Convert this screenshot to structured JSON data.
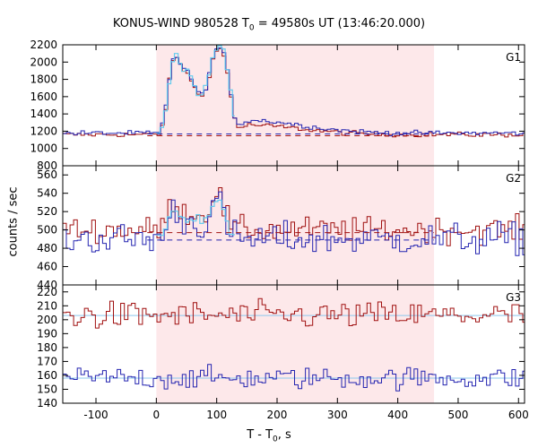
{
  "chart_data": {
    "type": "line",
    "title": "KONUS-WIND 980528 T0 = 49580s UT (13:46:20.000)",
    "title_parts": {
      "pre": "KONUS-WIND 980528 T",
      "sub": "0",
      "post": " = 49580s UT (13:46:20.000)"
    },
    "ylabel": "counts / sec",
    "xlabel": "T - T0, s",
    "xlabel_parts": {
      "pre": "T - T",
      "sub": "0",
      "post": ", s"
    },
    "xlim": [
      -155,
      610
    ],
    "x_ticks": [
      "-100",
      "0",
      "100",
      "200",
      "300",
      "400",
      "500",
      "600"
    ],
    "x_tick_values": [
      -100,
      0,
      100,
      200,
      300,
      400,
      500,
      600
    ],
    "highlight_interval": [
      0,
      460
    ],
    "highlight_color": "#fde8ea",
    "bin_width": 6,
    "colors": {
      "red": "#a01010",
      "blue": "#2424b0",
      "cyan": "#66ccee",
      "fit": "#8cc8ee"
    },
    "panels": [
      {
        "label": "G1",
        "ylim": [
          800,
          2200
        ],
        "y_ticks": [
          "800",
          "1000",
          "1200",
          "1400",
          "1600",
          "1800",
          "2000",
          "2200"
        ],
        "y_tick_values": [
          800,
          1000,
          1200,
          1400,
          1600,
          1800,
          2000,
          2200
        ],
        "background_levels": [
          {
            "color": "red",
            "value": 1148
          },
          {
            "color": "blue",
            "value": 1168
          }
        ],
        "series": [
          {
            "color": "red",
            "base": 1160,
            "noise": 14,
            "shape": "g1"
          },
          {
            "color": "blue",
            "base": 1178,
            "noise": 14,
            "shape": "g1b"
          },
          {
            "color": "cyan",
            "shape": "g1_light",
            "range": [
              0,
              130
            ]
          }
        ]
      },
      {
        "label": "G2",
        "ylim": [
          440,
          570
        ],
        "y_ticks": [
          "440",
          "460",
          "480",
          "500",
          "520",
          "540",
          "560"
        ],
        "y_tick_values": [
          440,
          460,
          480,
          500,
          520,
          540,
          560
        ],
        "background_levels": [
          {
            "color": "red",
            "value": 497
          },
          {
            "color": "blue",
            "value": 489
          }
        ],
        "series": [
          {
            "color": "red",
            "base": 500,
            "noise": 7,
            "shape": "g2"
          },
          {
            "color": "blue",
            "base": 490,
            "noise": 9,
            "shape": "g2"
          },
          {
            "color": "cyan",
            "shape": "g2_light",
            "range": [
              0,
              130
            ]
          }
        ]
      },
      {
        "label": "G3",
        "ylim": [
          140,
          225
        ],
        "y_ticks": [
          "140",
          "150",
          "160",
          "170",
          "180",
          "190",
          "200",
          "210",
          "220"
        ],
        "y_tick_values": [
          140,
          150,
          160,
          170,
          180,
          190,
          200,
          210,
          220
        ],
        "background_levels": [],
        "series": [
          {
            "color": "red",
            "base": 203,
            "noise": 5,
            "shape": "flat"
          },
          {
            "color": "blue",
            "base": 158,
            "noise": 4,
            "shape": "flat"
          }
        ],
        "fit_lines": [
          {
            "color": "fit",
            "value": 203
          },
          {
            "color": "fit",
            "value": 158
          }
        ]
      }
    ]
  }
}
